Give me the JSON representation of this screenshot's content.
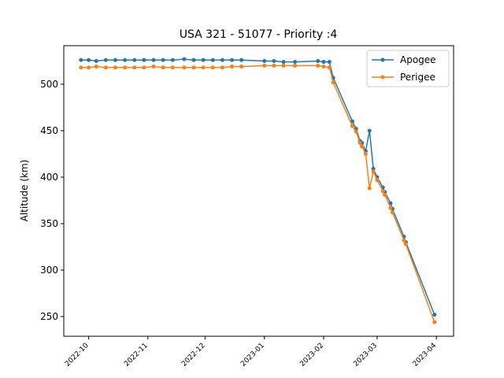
{
  "chart_data": {
    "type": "line",
    "title": "USA 321 - 51077 - Priority :4",
    "y_label": "Altitude (km)",
    "x": [
      "2022-09-27",
      "2022-10-01",
      "2022-10-05",
      "2022-10-10",
      "2022-10-15",
      "2022-10-20",
      "2022-10-25",
      "2022-10-30",
      "2022-11-04",
      "2022-11-09",
      "2022-11-14",
      "2022-11-20",
      "2022-11-25",
      "2022-11-30",
      "2022-12-05",
      "2022-12-10",
      "2022-12-15",
      "2022-12-20",
      "2023-01-01",
      "2023-01-06",
      "2023-01-11",
      "2023-01-17",
      "2023-01-29",
      "2023-02-01",
      "2023-02-04",
      "2023-02-06",
      "2023-02-16",
      "2023-02-18",
      "2023-02-20",
      "2023-02-21",
      "2023-02-23",
      "2023-02-25",
      "2023-02-27",
      "2023-03-01",
      "2023-03-04",
      "2023-03-05",
      "2023-03-08",
      "2023-03-09",
      "2023-03-15",
      "2023-03-16",
      "2023-03-31"
    ],
    "series": [
      {
        "name": "Apogee",
        "color": "#1f77b4",
        "values": [
          526,
          526,
          525,
          526,
          526,
          526,
          526,
          526,
          526,
          526,
          526,
          527,
          526,
          526,
          526,
          526,
          526,
          526,
          525,
          525,
          524,
          524,
          525,
          524,
          524,
          507,
          460,
          452,
          439,
          437,
          428,
          450,
          409,
          400,
          389,
          384,
          372,
          366,
          336,
          330,
          252
        ]
      },
      {
        "name": "Perigee",
        "color": "#ff7f0e",
        "values": [
          518,
          518,
          519,
          518,
          518,
          518,
          518,
          518,
          519,
          518,
          518,
          518,
          518,
          518,
          518,
          518,
          519,
          519,
          520,
          520,
          520,
          520,
          520,
          519,
          518,
          502,
          455,
          449,
          437,
          433,
          425,
          388,
          406,
          397,
          385,
          381,
          367,
          362,
          332,
          328,
          244
        ]
      }
    ],
    "xlim": [
      "2022-09-18",
      "2023-04-10"
    ],
    "xticks": [
      {
        "value": "2022-10-01",
        "label": "2022-10"
      },
      {
        "value": "2022-11-01",
        "label": "2022-11"
      },
      {
        "value": "2022-12-01",
        "label": "2022-12"
      },
      {
        "value": "2023-01-01",
        "label": "2023-01"
      },
      {
        "value": "2023-02-01",
        "label": "2023-02"
      },
      {
        "value": "2023-03-01",
        "label": "2023-03"
      },
      {
        "value": "2023-04-01",
        "label": "2023-04"
      }
    ],
    "ylim": [
      228.8,
      541.5
    ],
    "yticks": [
      250,
      300,
      350,
      400,
      450,
      500
    ],
    "legend": "upper right"
  }
}
